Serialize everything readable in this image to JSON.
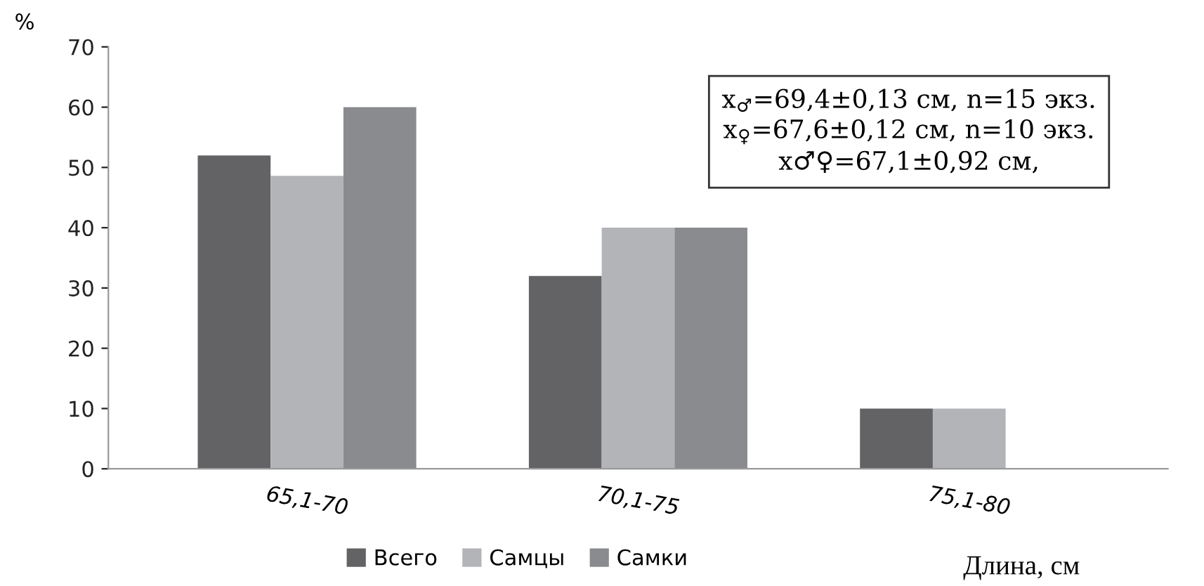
{
  "chart_data": {
    "type": "bar",
    "categories": [
      "65,1-70",
      "70,1-75",
      "75,1-80"
    ],
    "series": [
      {
        "name": "Всего",
        "color": "#636365",
        "values": [
          52,
          32,
          10
        ]
      },
      {
        "name": "Самцы",
        "color": "#b3b4b8",
        "values": [
          48.6,
          40,
          10
        ]
      },
      {
        "name": "Самки",
        "color": "#8a8b8f",
        "values": [
          60,
          40,
          0
        ]
      }
    ],
    "ylim": [
      0,
      70
    ],
    "yticks": [
      0,
      10,
      20,
      30,
      40,
      50,
      60,
      70
    ],
    "ylabel": "%",
    "xlabel": "Длина, см",
    "annotations": [
      "x$_{♂}$=69,4±0,13 см, n=15 экз.",
      "x$_{♀}$=67,6±0,12 см, n=10 экз.",
      "x♂♀=67,1±0,92 см,"
    ],
    "legend": "bottom",
    "grid": false
  }
}
